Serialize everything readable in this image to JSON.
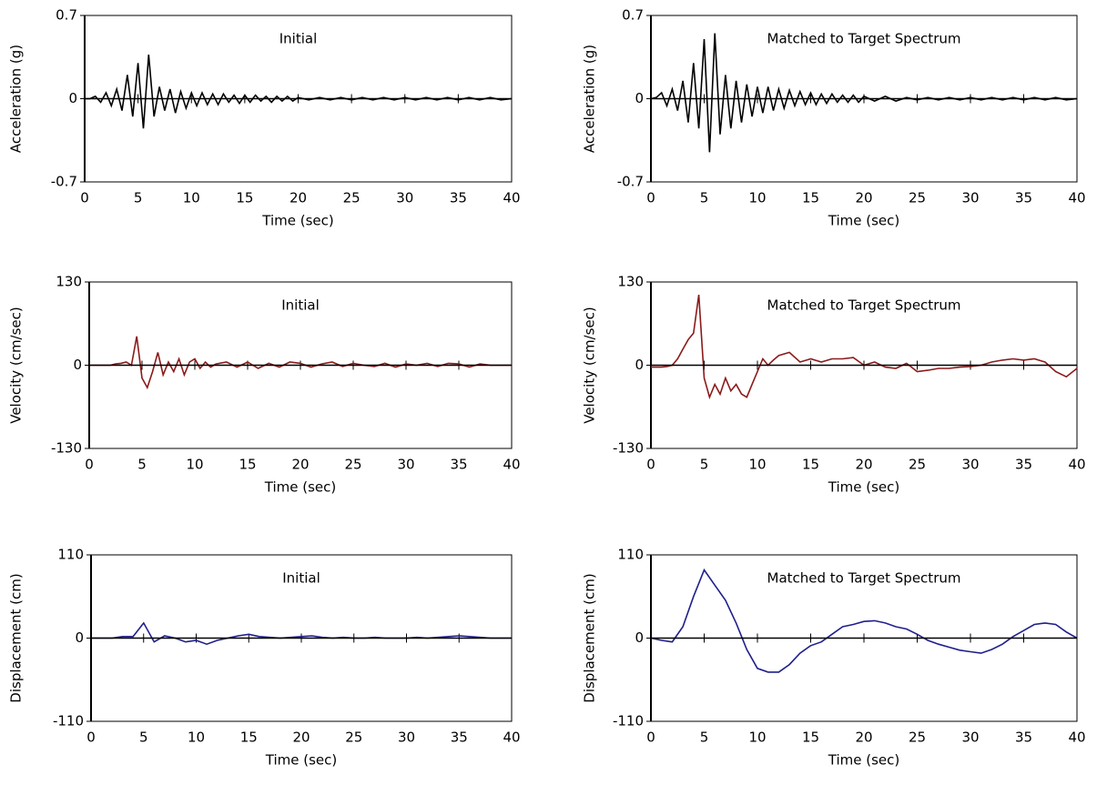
{
  "chart_data": [
    {
      "type": "line",
      "title": "Initial",
      "y_label": "Acceleration (g)",
      "x_label": "Time (sec)",
      "x": [
        0,
        0.5,
        1,
        1.5,
        2,
        2.5,
        3,
        3.5,
        4,
        4.5,
        5,
        5.5,
        6,
        6.5,
        7,
        7.5,
        8,
        8.5,
        9,
        9.5,
        10,
        10.5,
        11,
        11.5,
        12,
        12.5,
        13,
        13.5,
        14,
        14.5,
        15,
        15.5,
        16,
        16.5,
        17,
        17.5,
        18,
        18.5,
        19,
        19.5,
        20,
        21,
        22,
        23,
        24,
        25,
        26,
        27,
        28,
        29,
        30,
        31,
        32,
        33,
        34,
        35,
        36,
        37,
        38,
        39,
        40
      ],
      "series": [
        {
          "color": "#000000",
          "values": [
            0,
            0,
            0.02,
            -0.03,
            0.05,
            -0.06,
            0.08,
            -0.1,
            0.2,
            -0.15,
            0.3,
            -0.25,
            0.37,
            -0.15,
            0.1,
            -0.1,
            0.08,
            -0.12,
            0.06,
            -0.08,
            0.05,
            -0.06,
            0.05,
            -0.05,
            0.04,
            -0.05,
            0.04,
            -0.03,
            0.03,
            -0.04,
            0.03,
            -0.03,
            0.03,
            -0.02,
            0.02,
            -0.03,
            0.02,
            -0.02,
            0.02,
            -0.02,
            0.01,
            -0.01,
            0.01,
            -0.01,
            0.01,
            -0.01,
            0.01,
            -0.01,
            0.01,
            -0.01,
            0.01,
            -0.01,
            0.01,
            -0.01,
            0.01,
            -0.01,
            0.01,
            -0.01,
            0.01,
            -0.01,
            0
          ]
        }
      ],
      "xlim": [
        0,
        40
      ],
      "xticks": [
        0,
        5,
        10,
        15,
        20,
        25,
        30,
        35,
        40
      ],
      "ylim": [
        -0.7,
        0.7
      ],
      "yticks": [
        -0.7,
        0,
        0.7
      ]
    },
    {
      "type": "line",
      "title": "Matched to Target Spectrum",
      "y_label": "Acceleration (g)",
      "x_label": "Time (sec)",
      "x": [
        0,
        0.5,
        1,
        1.5,
        2,
        2.5,
        3,
        3.5,
        4,
        4.5,
        5,
        5.5,
        6,
        6.5,
        7,
        7.5,
        8,
        8.5,
        9,
        9.5,
        10,
        10.5,
        11,
        11.5,
        12,
        12.5,
        13,
        13.5,
        14,
        14.5,
        15,
        15.5,
        16,
        16.5,
        17,
        17.5,
        18,
        18.5,
        19,
        19.5,
        20,
        21,
        22,
        23,
        24,
        25,
        26,
        27,
        28,
        29,
        30,
        31,
        32,
        33,
        34,
        35,
        36,
        37,
        38,
        39,
        40
      ],
      "series": [
        {
          "color": "#000000",
          "values": [
            0,
            0.01,
            0.05,
            -0.06,
            0.08,
            -0.1,
            0.15,
            -0.2,
            0.3,
            -0.25,
            0.5,
            -0.45,
            0.55,
            -0.3,
            0.2,
            -0.25,
            0.15,
            -0.2,
            0.12,
            -0.15,
            0.1,
            -0.12,
            0.1,
            -0.1,
            0.08,
            -0.08,
            0.07,
            -0.06,
            0.06,
            -0.05,
            0.05,
            -0.05,
            0.04,
            -0.04,
            0.04,
            -0.03,
            0.03,
            -0.03,
            0.03,
            -0.03,
            0.02,
            -0.02,
            0.02,
            -0.02,
            0.01,
            -0.01,
            0.01,
            -0.01,
            0.01,
            -0.01,
            0.01,
            -0.01,
            0.01,
            -0.01,
            0.01,
            -0.01,
            0.01,
            -0.01,
            0.01,
            -0.01,
            0
          ]
        }
      ],
      "xlim": [
        0,
        40
      ],
      "xticks": [
        0,
        5,
        10,
        15,
        20,
        25,
        30,
        35,
        40
      ],
      "ylim": [
        -0.7,
        0.7
      ],
      "yticks": [
        -0.7,
        0,
        0.7
      ]
    },
    {
      "type": "line",
      "title": "Initial",
      "y_label": "Velocity (cm/sec)",
      "x_label": "Time (sec)",
      "x": [
        0,
        0.5,
        1,
        1.5,
        2,
        2.5,
        3,
        3.5,
        4,
        4.5,
        5,
        5.5,
        6,
        6.5,
        7,
        7.5,
        8,
        8.5,
        9,
        9.5,
        10,
        10.5,
        11,
        11.5,
        12,
        13,
        14,
        15,
        16,
        17,
        18,
        19,
        20,
        21,
        22,
        23,
        24,
        25,
        26,
        27,
        28,
        29,
        30,
        31,
        32,
        33,
        34,
        35,
        36,
        37,
        38,
        39,
        40
      ],
      "series": [
        {
          "color": "#8b1a1a",
          "values": [
            0,
            0,
            0,
            0,
            0,
            2,
            3,
            5,
            0,
            45,
            -20,
            -35,
            -10,
            20,
            -15,
            5,
            -10,
            10,
            -15,
            5,
            10,
            -5,
            5,
            -3,
            2,
            5,
            -3,
            5,
            -5,
            3,
            -3,
            5,
            3,
            -3,
            2,
            5,
            -2,
            3,
            0,
            -2,
            3,
            -3,
            2,
            0,
            3,
            -2,
            3,
            2,
            -3,
            2,
            0,
            0,
            0
          ]
        }
      ],
      "xlim": [
        0,
        40
      ],
      "xticks": [
        0,
        5,
        10,
        15,
        20,
        25,
        30,
        35,
        40
      ],
      "ylim": [
        -130,
        130
      ],
      "yticks": [
        -130,
        0,
        130
      ]
    },
    {
      "type": "line",
      "title": "Matched to Target Spectrum",
      "y_label": "Velocity (cm/sec)",
      "x_label": "Time (sec)",
      "x": [
        0,
        0.5,
        1,
        1.5,
        2,
        2.5,
        3,
        3.5,
        4,
        4.5,
        5,
        5.5,
        6,
        6.5,
        7,
        7.5,
        8,
        8.5,
        9,
        9.5,
        10,
        10.5,
        11,
        11.5,
        12,
        13,
        14,
        15,
        16,
        17,
        18,
        19,
        20,
        21,
        22,
        23,
        24,
        25,
        26,
        27,
        28,
        29,
        30,
        31,
        32,
        33,
        34,
        35,
        36,
        37,
        38,
        39,
        40
      ],
      "series": [
        {
          "color": "#8b1a1a",
          "values": [
            -3,
            -3,
            -3,
            -2,
            0,
            10,
            25,
            40,
            50,
            110,
            -20,
            -50,
            -30,
            -45,
            -20,
            -40,
            -30,
            -45,
            -50,
            -30,
            -10,
            10,
            0,
            8,
            15,
            20,
            5,
            10,
            5,
            10,
            10,
            12,
            0,
            5,
            -3,
            -5,
            3,
            -10,
            -8,
            -5,
            -5,
            -3,
            -2,
            0,
            5,
            8,
            10,
            8,
            10,
            5,
            -10,
            -18,
            -5
          ]
        }
      ],
      "xlim": [
        0,
        40
      ],
      "xticks": [
        0,
        5,
        10,
        15,
        20,
        25,
        30,
        35,
        40
      ],
      "ylim": [
        -130,
        130
      ],
      "yticks": [
        -130,
        0,
        130
      ]
    },
    {
      "type": "line",
      "title": "Initial",
      "y_label": "Displacement (cm)",
      "x_label": "Time (sec)",
      "x": [
        0,
        1,
        2,
        3,
        4,
        5,
        6,
        7,
        8,
        9,
        10,
        11,
        12,
        13,
        14,
        15,
        16,
        17,
        18,
        19,
        20,
        21,
        22,
        23,
        24,
        25,
        26,
        27,
        28,
        29,
        30,
        31,
        32,
        33,
        34,
        35,
        36,
        37,
        38,
        39,
        40
      ],
      "series": [
        {
          "color": "#1f1f8c",
          "values": [
            0,
            0,
            0,
            2,
            2,
            20,
            -5,
            3,
            0,
            -5,
            -3,
            -8,
            -3,
            0,
            3,
            5,
            2,
            1,
            0,
            1,
            2,
            3,
            1,
            0,
            1,
            0,
            0,
            1,
            0,
            0,
            0,
            1,
            0,
            1,
            2,
            3,
            2,
            1,
            0,
            0,
            0
          ]
        }
      ],
      "xlim": [
        0,
        40
      ],
      "xticks": [
        0,
        5,
        10,
        15,
        20,
        25,
        30,
        35,
        40
      ],
      "ylim": [
        -110,
        110
      ],
      "yticks": [
        -110,
        0,
        110
      ]
    },
    {
      "type": "line",
      "title": "Matched to Target Spectrum",
      "y_label": "Displacement (cm)",
      "x_label": "Time (sec)",
      "x": [
        0,
        1,
        2,
        3,
        4,
        5,
        6,
        7,
        8,
        9,
        10,
        11,
        12,
        13,
        14,
        15,
        16,
        17,
        18,
        19,
        20,
        21,
        22,
        23,
        24,
        25,
        26,
        27,
        28,
        29,
        30,
        31,
        32,
        33,
        34,
        35,
        36,
        37,
        38,
        39,
        40
      ],
      "series": [
        {
          "color": "#1f1f8c",
          "values": [
            0,
            -3,
            -5,
            15,
            55,
            90,
            70,
            50,
            20,
            -15,
            -40,
            -45,
            -45,
            -35,
            -20,
            -10,
            -5,
            5,
            15,
            18,
            22,
            23,
            20,
            15,
            12,
            5,
            -3,
            -8,
            -12,
            -16,
            -18,
            -20,
            -15,
            -8,
            2,
            10,
            18,
            20,
            18,
            8,
            0
          ]
        }
      ],
      "xlim": [
        0,
        40
      ],
      "xticks": [
        0,
        5,
        10,
        15,
        20,
        25,
        30,
        35,
        40
      ],
      "ylim": [
        -110,
        110
      ],
      "yticks": [
        -110,
        0,
        110
      ]
    }
  ]
}
